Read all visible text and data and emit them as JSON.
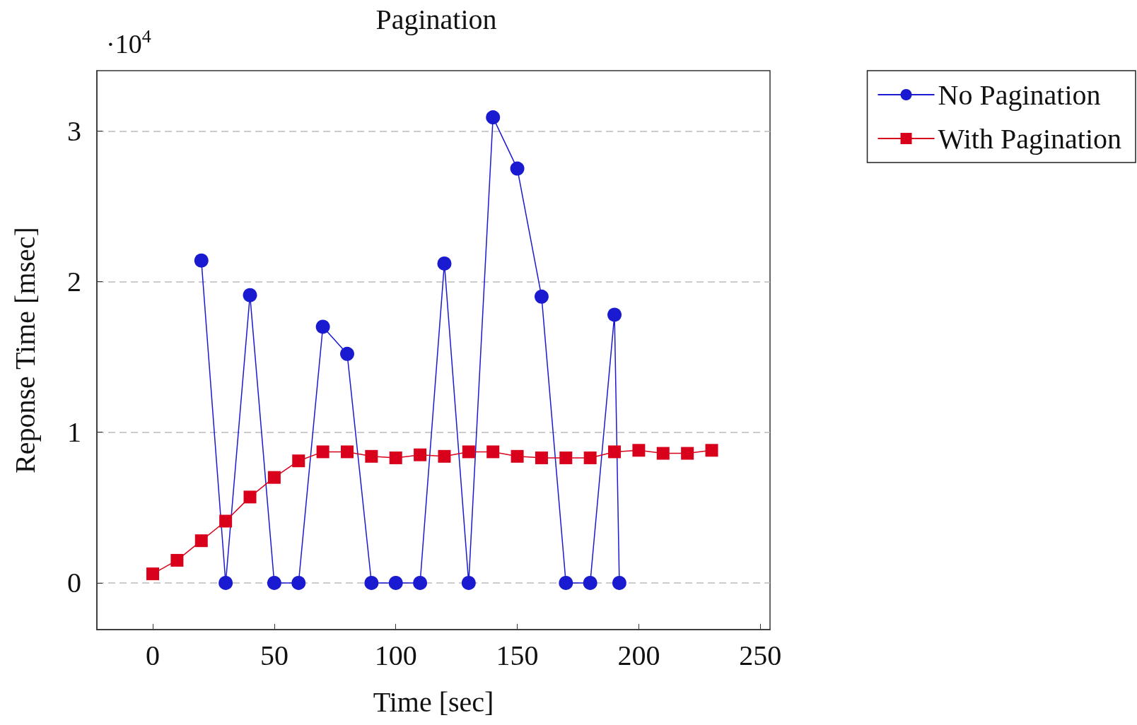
{
  "chart_data": {
    "type": "line",
    "title": "Pagination",
    "xlabel": "Time [sec]",
    "ylabel": "Reponse Time [msec]",
    "annotations": [
      "·10$^{4}$"
    ],
    "xlim": [
      -23,
      254
    ],
    "xticks": [
      0,
      50,
      100,
      150,
      200,
      250
    ],
    "ylim": [
      -0.31,
      3.4
    ],
    "yticks": [
      0,
      1,
      2,
      3
    ],
    "grid": "y",
    "legend": "top right",
    "series": [
      {
        "name": "No Pagination",
        "color": "#1a1ad0",
        "marker": "circle",
        "x": [
          20,
          30,
          40,
          50,
          60,
          70,
          80,
          90,
          100,
          110,
          120,
          130,
          140,
          150,
          160,
          170,
          180,
          190,
          192
        ],
        "values": [
          2.14,
          0,
          1.91,
          0,
          0,
          1.7,
          1.52,
          0,
          0,
          0,
          2.12,
          0,
          3.09,
          2.75,
          1.9,
          0,
          0,
          1.78,
          0
        ]
      },
      {
        "name": "With Pagination",
        "color": "#d9001b",
        "marker": "square",
        "x": [
          0,
          10,
          20,
          30,
          40,
          50,
          60,
          70,
          80,
          90,
          100,
          110,
          120,
          130,
          140,
          150,
          160,
          170,
          180,
          190,
          200,
          210,
          220,
          230
        ],
        "values": [
          0.06,
          0.15,
          0.28,
          0.41,
          0.57,
          0.7,
          0.81,
          0.87,
          0.87,
          0.84,
          0.83,
          0.85,
          0.84,
          0.87,
          0.87,
          0.84,
          0.83,
          0.83,
          0.83,
          0.87,
          0.88,
          0.86,
          0.86,
          0.88
        ]
      }
    ]
  }
}
